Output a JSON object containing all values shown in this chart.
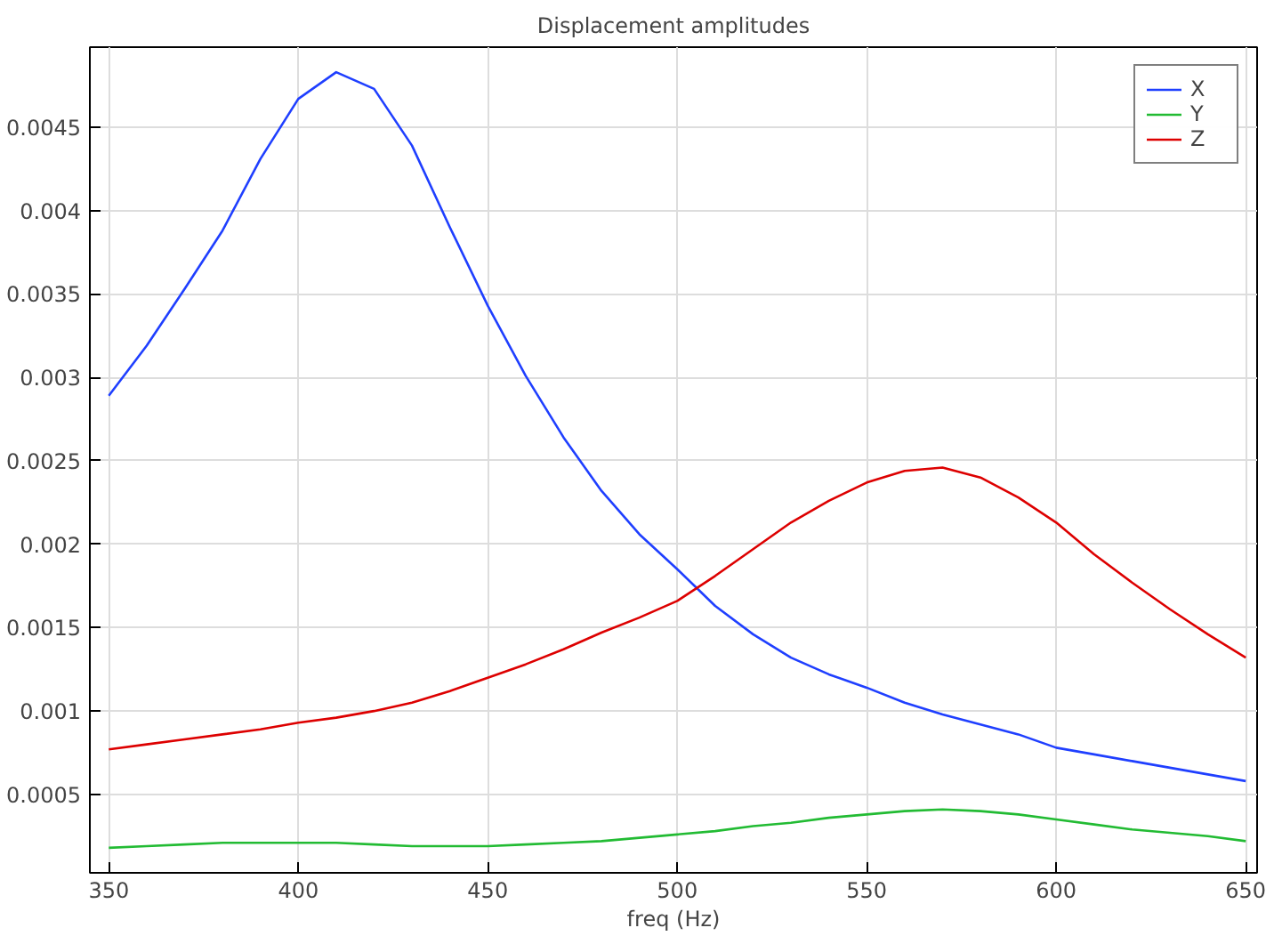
{
  "chart_data": {
    "type": "line",
    "title": "Displacement amplitudes",
    "xlabel": "freq (Hz)",
    "x": [
      350,
      360,
      370,
      380,
      390,
      400,
      410,
      420,
      430,
      440,
      450,
      460,
      470,
      480,
      490,
      500,
      510,
      520,
      530,
      540,
      550,
      560,
      570,
      580,
      590,
      600,
      610,
      620,
      630,
      640,
      650
    ],
    "series": [
      {
        "name": "X",
        "color": "#1f3fff",
        "values": [
          0.00289,
          0.00319,
          0.00353,
          0.00388,
          0.00431,
          0.00467,
          0.00483,
          0.00473,
          0.00439,
          0.0039,
          0.00343,
          0.00301,
          0.00264,
          0.00232,
          0.00206,
          0.00185,
          0.00163,
          0.00146,
          0.00132,
          0.00122,
          0.00114,
          0.00105,
          0.00098,
          0.00092,
          0.00086,
          0.00078,
          0.00074,
          0.0007,
          0.00066,
          0.00062,
          0.00058
        ]
      },
      {
        "name": "Y",
        "color": "#22bb33",
        "values": [
          0.00018,
          0.00019,
          0.0002,
          0.00021,
          0.00021,
          0.00021,
          0.00021,
          0.0002,
          0.00019,
          0.00019,
          0.00019,
          0.0002,
          0.00021,
          0.00022,
          0.00024,
          0.00026,
          0.00028,
          0.00031,
          0.00033,
          0.00036,
          0.00038,
          0.0004,
          0.00041,
          0.0004,
          0.00038,
          0.00035,
          0.00032,
          0.00029,
          0.00027,
          0.00025,
          0.00022
        ]
      },
      {
        "name": "Z",
        "color": "#dd0000",
        "values": [
          0.00077,
          0.0008,
          0.00083,
          0.00086,
          0.00089,
          0.00093,
          0.00096,
          0.001,
          0.00105,
          0.00112,
          0.0012,
          0.00128,
          0.00137,
          0.00147,
          0.00156,
          0.00166,
          0.00181,
          0.00197,
          0.00213,
          0.00226,
          0.00237,
          0.00244,
          0.00246,
          0.0024,
          0.00228,
          0.00213,
          0.00194,
          0.00177,
          0.00161,
          0.00146,
          0.00132
        ]
      }
    ],
    "xlim": [
      345,
      653
    ],
    "ylim": [
      3e-05,
      0.00498
    ],
    "xticks": [
      350,
      400,
      450,
      500,
      550,
      600,
      650
    ],
    "yticks": [
      0.0005,
      0.001,
      0.0015,
      0.002,
      0.0025,
      0.003,
      0.0035,
      0.004,
      0.0045
    ],
    "grid": true,
    "legend": "top right",
    "marker": "none",
    "line_style": "solid"
  }
}
